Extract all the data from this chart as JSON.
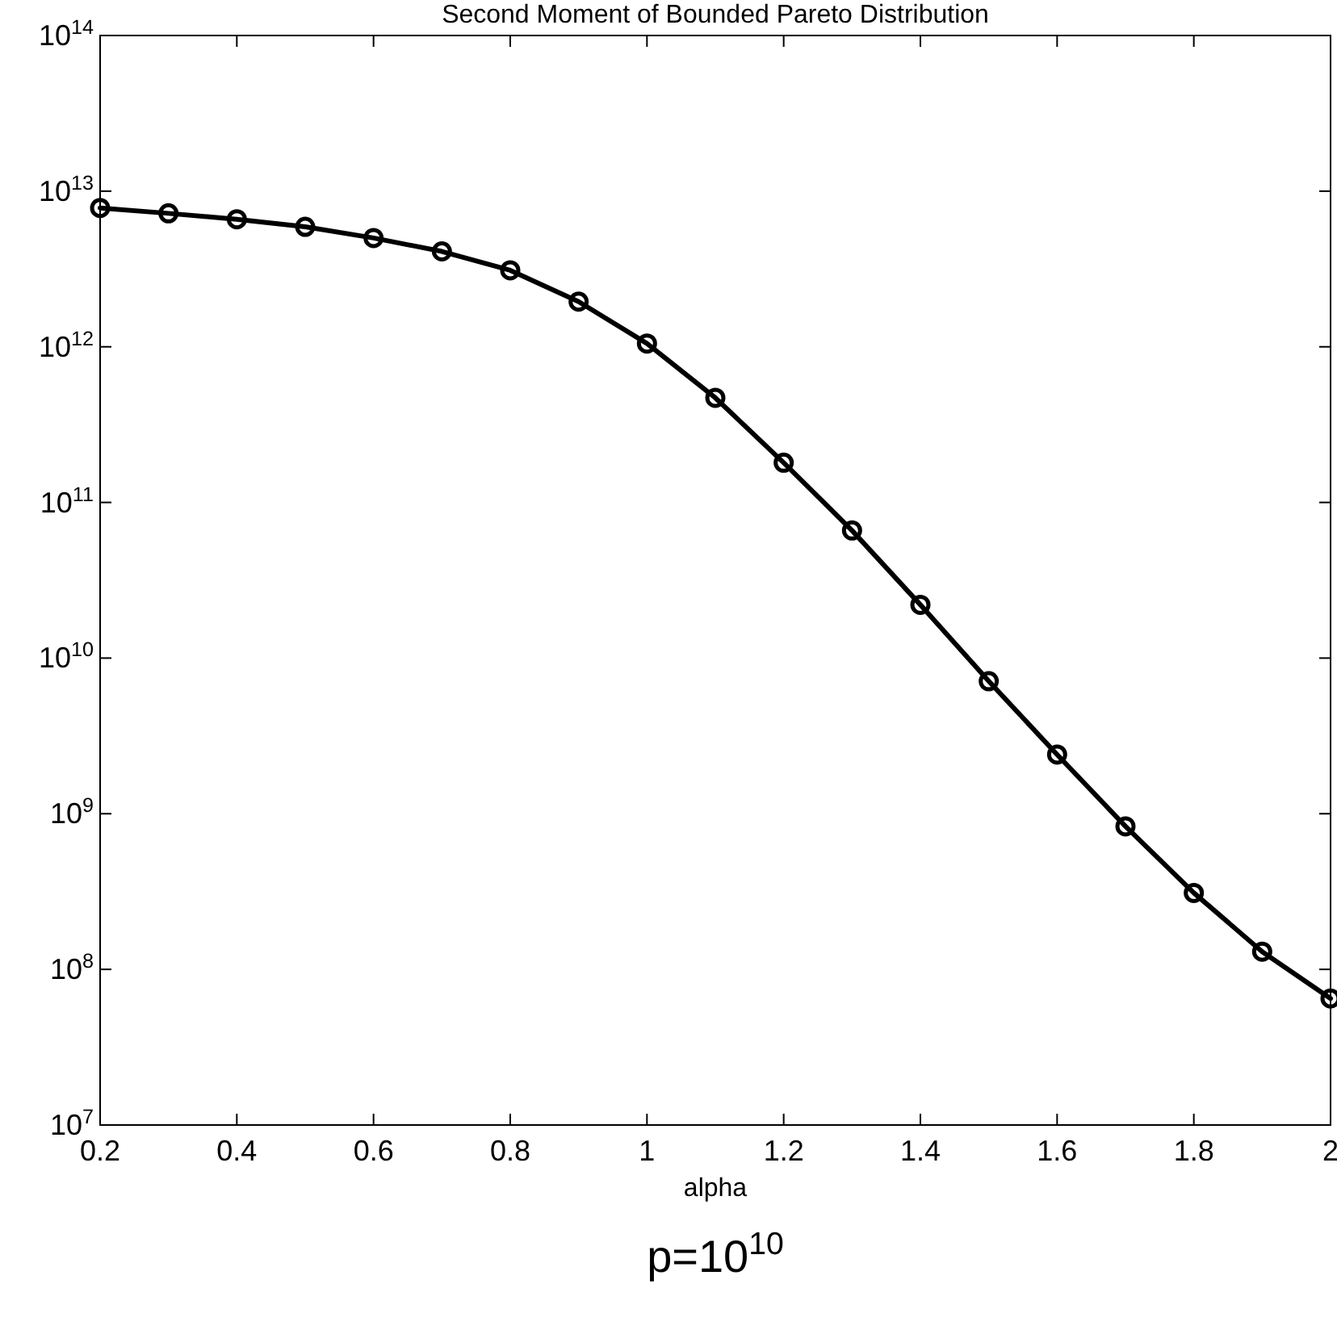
{
  "chart_data": {
    "type": "line",
    "title": "Second Moment of Bounded Pareto Distribution",
    "xlabel": "alpha",
    "annotations": [
      "p=10$^{10}$"
    ],
    "x": [
      0.2,
      0.3,
      0.4,
      0.5,
      0.6,
      0.7,
      0.8,
      0.9,
      1.0,
      1.1,
      1.2,
      1.3,
      1.4,
      1.5,
      1.6,
      1.7,
      1.8,
      1.9,
      2.0
    ],
    "series": [
      {
        "color": "#000000",
        "values": [
          7800000000000.0,
          7200000000000.0,
          6600000000000.0,
          5900000000000.0,
          5000000000000.0,
          4100000000000.0,
          3100000000000.0,
          1950000000000.0,
          1050000000000.0,
          470000000000.0,
          180000000000.0,
          66000000000.0,
          22000000000.0,
          7100000000.0,
          2400000000.0,
          830000000.0,
          310000000.0,
          130000000.0,
          65000000.0
        ]
      }
    ],
    "xlim": [
      0.2,
      2
    ],
    "xticks": [
      0.2,
      0.4,
      0.6,
      0.8,
      1,
      1.2,
      1.4,
      1.6,
      1.8,
      2
    ],
    "ylim": [
      10000000.0,
      100000000000000.0
    ],
    "yticks": [
      {
        "value": 10000000.0,
        "label": "10$^{7}$"
      },
      {
        "value": 100000000.0,
        "label": "10$^{8}$"
      },
      {
        "value": 1000000000.0,
        "label": "10$^{9}$"
      },
      {
        "value": 10000000000.0,
        "label": "10$^{10}$"
      },
      {
        "value": 100000000000.0,
        "label": "10$^{11}$"
      },
      {
        "value": 1000000000000.0,
        "label": "10$^{12}$"
      },
      {
        "value": 10000000000000.0,
        "label": "10$^{13}$"
      },
      {
        "value": 100000000000000.0,
        "label": "10$^{14}$"
      }
    ],
    "log": "y",
    "grid": false,
    "marker": "circle",
    "line_style": "solid"
  }
}
